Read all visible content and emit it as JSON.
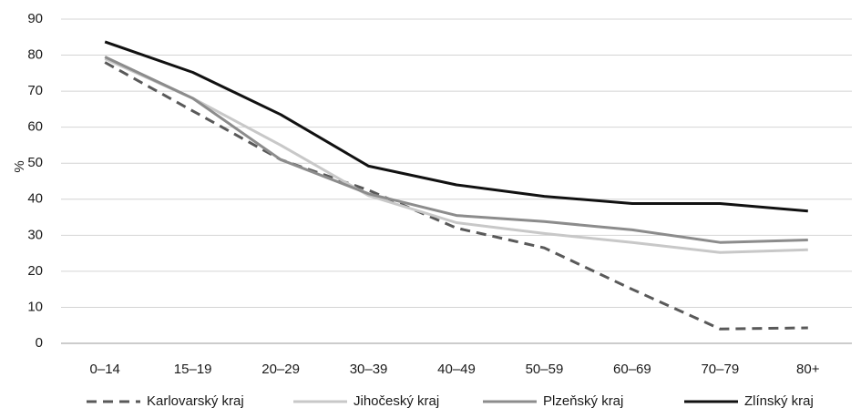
{
  "chart_data": {
    "type": "line",
    "title": "",
    "xlabel": "",
    "ylabel": "%",
    "ylim": [
      0,
      90
    ],
    "yticks": [
      0,
      10,
      20,
      30,
      40,
      50,
      60,
      70,
      80,
      90
    ],
    "grid": true,
    "legend_position": "bottom",
    "categories": [
      "0–14",
      "15–19",
      "20–29",
      "30–39",
      "40–49",
      "50–59",
      "60–69",
      "70–79",
      "80+"
    ],
    "series": [
      {
        "name": "Karlovarský kraj",
        "color": "#595959",
        "dash": "dashed",
        "values": [
          78,
          64.5,
          51,
          42.5,
          32,
          26.5,
          15,
          4,
          4.3
        ]
      },
      {
        "name": "Jihočeský kraj",
        "color": "#c8c8c8",
        "dash": "solid",
        "values": [
          79,
          68,
          55,
          41,
          33.5,
          30.5,
          28,
          25.2,
          26
        ]
      },
      {
        "name": "Plzeňský kraj",
        "color": "#8c8c8c",
        "dash": "solid",
        "values": [
          79.5,
          68,
          51,
          41.5,
          35.5,
          33.8,
          31.5,
          28,
          28.7
        ]
      },
      {
        "name": "Zlínský kraj",
        "color": "#111111",
        "dash": "solid",
        "values": [
          83.7,
          75.2,
          63.5,
          49.2,
          44,
          40.8,
          38.8,
          38.8,
          36.7
        ]
      }
    ]
  }
}
